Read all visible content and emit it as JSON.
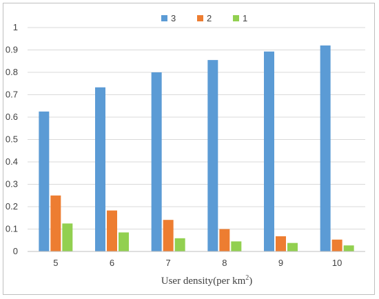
{
  "chart_data": {
    "type": "bar",
    "categories": [
      "5",
      "6",
      "7",
      "8",
      "9",
      "10"
    ],
    "series": [
      {
        "name": "3",
        "color": "#5b9bd5",
        "values": [
          0.625,
          0.733,
          0.8,
          0.855,
          0.893,
          0.92
        ]
      },
      {
        "name": "2",
        "color": "#ed7d31",
        "values": [
          0.25,
          0.183,
          0.141,
          0.1,
          0.068,
          0.053
        ]
      },
      {
        "name": "1",
        "color": "#92d050",
        "values": [
          0.125,
          0.085,
          0.059,
          0.045,
          0.038,
          0.027
        ]
      }
    ],
    "xlabel_main": "User density(per km",
    "xlabel_sup": "2",
    "xlabel_close": ")",
    "ylabel": "",
    "ylim": [
      0,
      1
    ],
    "yticks": [
      "0",
      "0.1",
      "0.2",
      "0.3",
      "0.4",
      "0.5",
      "0.6",
      "0.7",
      "0.8",
      "0.9",
      "1"
    ],
    "grid": true,
    "legend_position": "top-center"
  }
}
